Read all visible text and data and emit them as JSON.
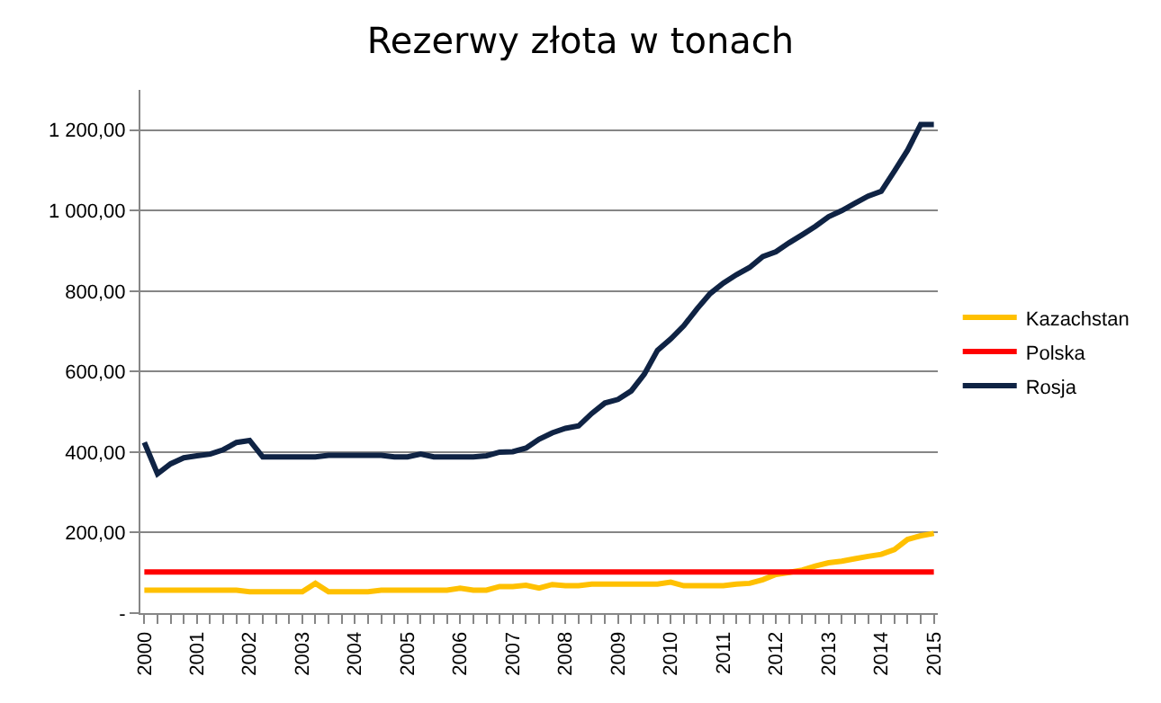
{
  "chart_data": {
    "type": "line",
    "title": "Rezerwy złota w tonach",
    "categories": [
      "2000",
      null,
      null,
      null,
      "2001",
      null,
      null,
      null,
      "2002",
      null,
      null,
      null,
      "2003",
      null,
      null,
      null,
      "2004",
      null,
      null,
      null,
      "2005",
      null,
      null,
      null,
      "2006",
      null,
      null,
      null,
      "2007",
      null,
      null,
      null,
      "2008",
      null,
      null,
      null,
      "2009",
      null,
      null,
      null,
      "2010",
      null,
      null,
      null,
      "2011",
      null,
      null,
      null,
      "2012",
      null,
      null,
      null,
      "2013",
      null,
      null,
      null,
      "2014",
      null,
      null,
      null,
      "2015"
    ],
    "series": [
      {
        "name": "Kazachstan",
        "color": "#ffc000",
        "values": [
          57,
          57,
          57,
          57,
          57,
          57,
          57,
          57,
          53,
          53,
          53,
          53,
          53,
          74,
          53,
          53,
          53,
          53,
          57,
          57,
          57,
          57,
          57,
          57,
          62,
          57,
          57,
          66,
          66,
          69,
          62,
          71,
          68,
          68,
          72,
          72,
          72,
          72,
          72,
          72,
          77,
          68,
          68,
          68,
          68,
          72,
          74,
          83,
          96,
          101,
          107,
          117,
          125,
          129,
          135,
          141,
          146,
          158,
          183,
          192,
          198
        ]
      },
      {
        "name": "Polska",
        "color": "#ff0000",
        "values": [
          102,
          102,
          102,
          102,
          102,
          102,
          102,
          102,
          102,
          102,
          102,
          102,
          102,
          102,
          102,
          102,
          102,
          102,
          102,
          102,
          102,
          102,
          102,
          102,
          102,
          102,
          102,
          102,
          102,
          102,
          102,
          102,
          102,
          102,
          102,
          102,
          102,
          102,
          102,
          102,
          102,
          102,
          102,
          102,
          102,
          102,
          102,
          102,
          102,
          102,
          102,
          102,
          102,
          102,
          102,
          102,
          102,
          102,
          102,
          102,
          102
        ]
      },
      {
        "name": "Rosja",
        "color": "#0f2344",
        "values": [
          424,
          346,
          371,
          386,
          391,
          395,
          406,
          424,
          429,
          388,
          388,
          388,
          388,
          388,
          392,
          392,
          392,
          392,
          392,
          388,
          388,
          395,
          388,
          388,
          388,
          388,
          391,
          400,
          401,
          410,
          432,
          448,
          459,
          465,
          496,
          522,
          531,
          552,
          594,
          653,
          681,
          714,
          756,
          794,
          820,
          841,
          859,
          886,
          898,
          920,
          940,
          961,
          985,
          1000,
          1018,
          1036,
          1048,
          1098,
          1150,
          1214,
          1214
        ]
      }
    ],
    "ylim": [
      0,
      1300
    ],
    "yticks": [
      {
        "value": 0,
        "label": "-"
      },
      {
        "value": 200,
        "label": "200,00"
      },
      {
        "value": 400,
        "label": "400,00"
      },
      {
        "value": 600,
        "label": "600,00"
      },
      {
        "value": 800,
        "label": "800,00"
      },
      {
        "value": 1000,
        "label": "1 000,00"
      },
      {
        "value": 1200,
        "label": "1 200,00"
      }
    ],
    "grid": "y",
    "legend": "right",
    "line_style": "solid"
  }
}
